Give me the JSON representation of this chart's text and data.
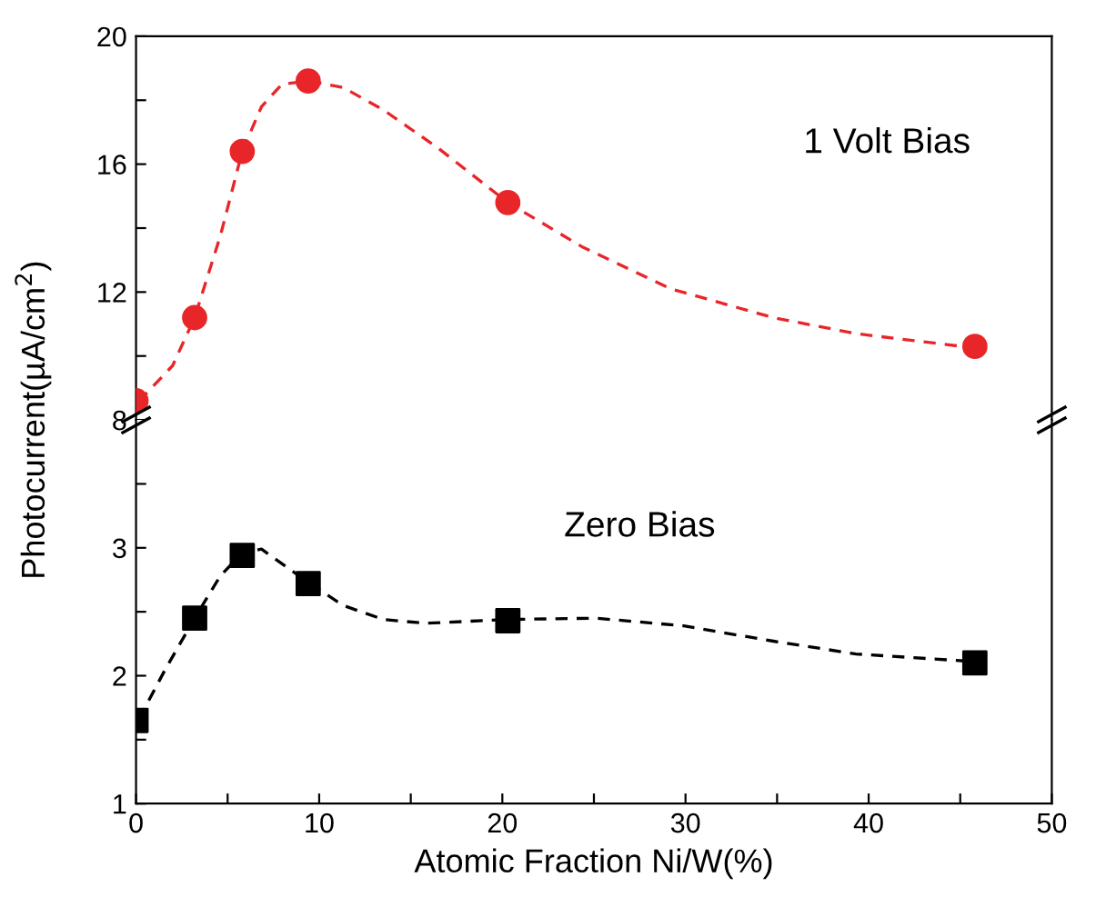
{
  "chart_data": [
    {
      "type": "line",
      "ylabel": "Photocurrent(µA/cm$^{2}$)",
      "annotations": [
        "1 Volt Bias"
      ],
      "tick_labels": "y",
      "xlim": [
        0,
        50
      ],
      "ylim": [
        8,
        20
      ],
      "yticks": [
        8,
        {
          "value": 10,
          "label": null
        },
        12,
        {
          "value": 14,
          "label": null
        },
        16,
        {
          "value": 18,
          "label": null
        },
        20
      ],
      "series": [
        {
          "line_style": "dashed",
          "marker": "none",
          "color": "#e8262a",
          "x": [
            0.15,
            2.0,
            3.2,
            4.6,
            5.8,
            6.85,
            7.96,
            9.4,
            11.3,
            13.5,
            16.5,
            20.3,
            24.4,
            29.2,
            34.8,
            39.3,
            45.8
          ],
          "values": [
            8.58,
            9.7,
            11.2,
            13.75,
            16.4,
            17.8,
            18.5,
            18.6,
            18.4,
            17.7,
            16.5,
            14.8,
            13.4,
            12.1,
            11.2,
            10.7,
            10.25
          ]
        },
        {
          "type": "scatter",
          "marker": "circle",
          "color": "#e8262a",
          "x": [
            0,
            3.2,
            5.8,
            9.4,
            20.3,
            45.8
          ],
          "values": [
            8.6,
            11.2,
            16.4,
            18.6,
            14.8,
            10.3
          ]
        }
      ]
    },
    {
      "type": "line",
      "xlabel": "Atomic Fraction Ni/W(%)",
      "annotations": [
        "Zero Bias"
      ],
      "xlim": [
        0,
        50
      ],
      "xticks": [
        0,
        {
          "value": 5,
          "label": null
        },
        10,
        {
          "value": 15,
          "label": null
        },
        20,
        {
          "value": 25,
          "label": null
        },
        30,
        {
          "value": 35,
          "label": null
        },
        40,
        {
          "value": 45,
          "label": null
        },
        50
      ],
      "ylim": [
        1,
        4
      ],
      "yticks": [
        1,
        {
          "value": 1.5,
          "label": null
        },
        2,
        {
          "value": 2.5,
          "label": null
        },
        3,
        {
          "value": 3.5,
          "label": null
        }
      ],
      "series": [
        {
          "line_style": "dashed",
          "marker": "none",
          "color": "#000000",
          "x": [
            0.15,
            1.6,
            3.2,
            4.6,
            5.8,
            6.85,
            9.4,
            11.3,
            13.5,
            15.8,
            20.3,
            25.1,
            29.9,
            34.8,
            39.3,
            45.8
          ],
          "values": [
            1.66,
            2.05,
            2.45,
            2.78,
            2.96,
            2.99,
            2.73,
            2.55,
            2.44,
            2.41,
            2.44,
            2.45,
            2.39,
            2.27,
            2.17,
            2.11
          ]
        },
        {
          "type": "scatter",
          "marker": "square",
          "color": "#000000",
          "x": [
            0,
            3.2,
            5.8,
            9.4,
            20.3,
            45.8
          ],
          "values": [
            1.65,
            2.45,
            2.94,
            2.72,
            2.43,
            2.1
          ]
        }
      ]
    }
  ]
}
